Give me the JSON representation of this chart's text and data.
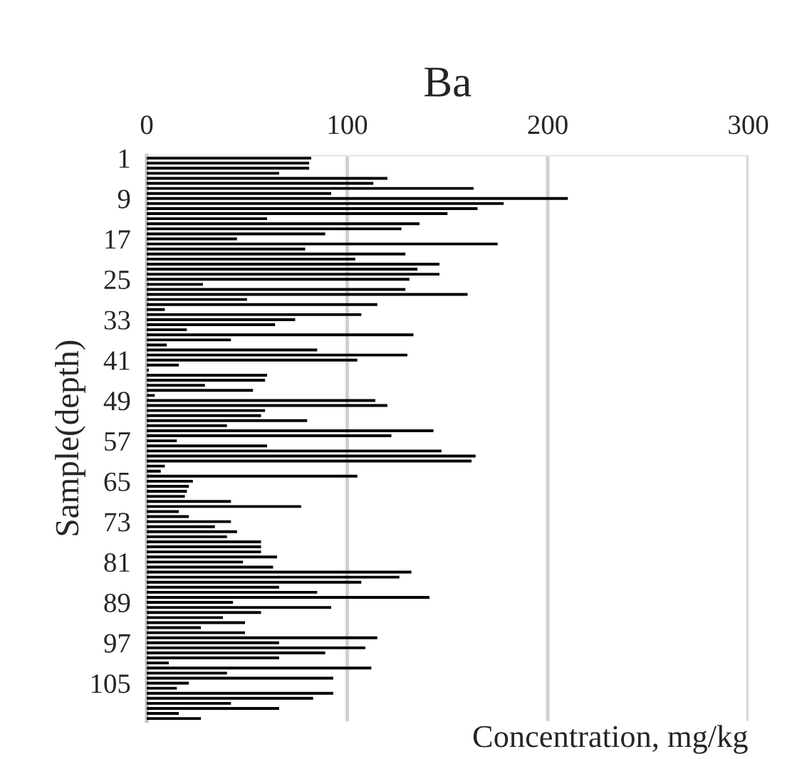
{
  "chart_data": {
    "type": "bar",
    "orientation": "horizontal",
    "title": "Ba",
    "xlabel": "Concentration, mg/kg",
    "ylabel": "Sample(depth)",
    "categories": [
      "1",
      null,
      null,
      null,
      null,
      null,
      null,
      null,
      "9",
      null,
      null,
      null,
      null,
      null,
      null,
      null,
      "17",
      null,
      null,
      null,
      null,
      null,
      null,
      null,
      "25",
      null,
      null,
      null,
      null,
      null,
      null,
      null,
      "33",
      null,
      null,
      null,
      null,
      null,
      null,
      null,
      "41",
      null,
      null,
      null,
      null,
      null,
      null,
      null,
      "49",
      null,
      null,
      null,
      null,
      null,
      null,
      null,
      "57",
      null,
      null,
      null,
      null,
      null,
      null,
      null,
      "65",
      null,
      null,
      null,
      null,
      null,
      null,
      null,
      "73",
      null,
      null,
      null,
      null,
      null,
      null,
      null,
      "81",
      null,
      null,
      null,
      null,
      null,
      null,
      null,
      "89",
      null,
      null,
      null,
      null,
      null,
      null,
      null,
      "97",
      null,
      null,
      null,
      null,
      null,
      null,
      null,
      "105",
      null,
      null,
      null,
      null,
      null,
      null,
      null
    ],
    "values": [
      82,
      81,
      81,
      66,
      120,
      113,
      163,
      92,
      210,
      178,
      165,
      150,
      60,
      136,
      127,
      89,
      45,
      175,
      79,
      129,
      104,
      146,
      135,
      146,
      131,
      28,
      129,
      160,
      50,
      115,
      9,
      107,
      74,
      64,
      20,
      133,
      42,
      10,
      85,
      130,
      105,
      16,
      1,
      60,
      59,
      29,
      53,
      4,
      114,
      120,
      59,
      57,
      80,
      40,
      143,
      122,
      15,
      60,
      147,
      164,
      162,
      9,
      7,
      105,
      23,
      21,
      20,
      19,
      42,
      77,
      16,
      21,
      42,
      34,
      45,
      40,
      57,
      57,
      57,
      65,
      48,
      63,
      132,
      126,
      107,
      66,
      85,
      141,
      43,
      92,
      57,
      38,
      49,
      27,
      49,
      115,
      66,
      109,
      89,
      66,
      11,
      112,
      40,
      93,
      21,
      15,
      93,
      83,
      42,
      66,
      16,
      27
    ],
    "color": "#000000",
    "xlim": [
      0,
      300
    ],
    "xticks": [
      0,
      100,
      200,
      300
    ],
    "grid": "x",
    "legend": false
  }
}
